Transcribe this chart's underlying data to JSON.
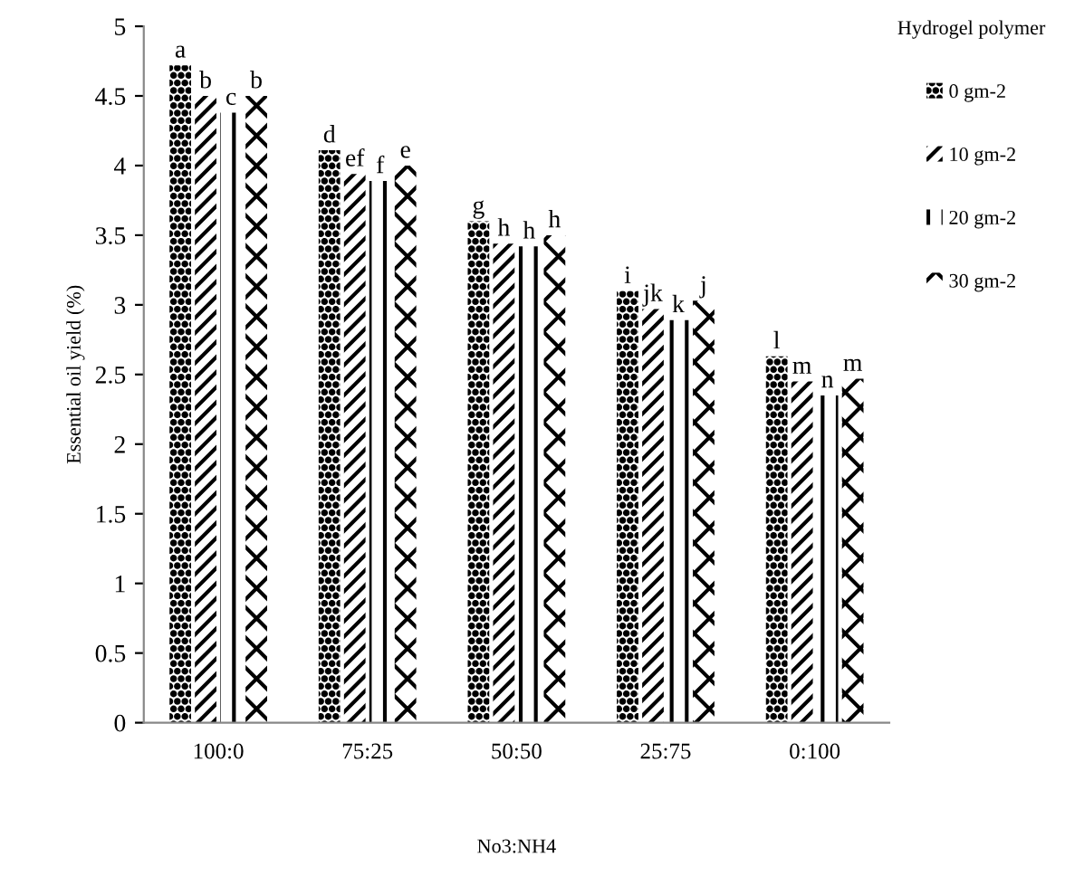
{
  "chart_data": {
    "type": "bar",
    "categories": [
      "100:0",
      "75:25",
      "50:50",
      "25:75",
      "0:100"
    ],
    "xlabel": "No3:NH4",
    "ylabel": "Essential oil yield (%)",
    "legend_title": "Hydrogel polymer",
    "series": [
      {
        "name": "0 gm-2",
        "color": "#000000",
        "values": [
          4.72,
          4.11,
          3.6,
          3.1,
          2.63
        ],
        "value_labels": [
          "a",
          "d",
          "g",
          "i",
          "l"
        ]
      },
      {
        "name": "10 gm-2",
        "color": "#000000",
        "values": [
          4.5,
          3.94,
          3.44,
          2.97,
          2.45
        ],
        "value_labels": [
          "b",
          "ef",
          "h",
          "jk",
          "m"
        ]
      },
      {
        "name": "20 gm-2",
        "color": "#000000",
        "values": [
          4.38,
          3.89,
          3.42,
          2.89,
          2.35
        ],
        "value_labels": [
          "c",
          "f",
          "h",
          "k",
          "n"
        ]
      },
      {
        "name": "30 gm-2",
        "color": "#000000",
        "values": [
          4.5,
          4.0,
          3.5,
          3.03,
          2.47
        ],
        "value_labels": [
          "b",
          "e",
          "h",
          "j",
          "m"
        ]
      }
    ],
    "ylim": [
      0,
      5
    ],
    "yticks": [
      0,
      0.5,
      1,
      1.5,
      2,
      2.5,
      3,
      3.5,
      4,
      4.5,
      5
    ],
    "grid": false,
    "legend": "right"
  }
}
